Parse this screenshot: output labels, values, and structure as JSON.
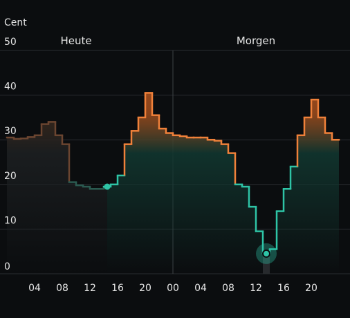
{
  "chart_data": {
    "type": "area",
    "ylabel": "Cent",
    "ylim": [
      0,
      50
    ],
    "yticks": [
      0,
      10,
      20,
      30,
      40,
      50
    ],
    "day_labels": [
      {
        "text": "Heute",
        "hour": 10
      },
      {
        "text": "Morgen",
        "hour": 36
      }
    ],
    "xticks": [
      {
        "hour": 4,
        "label": "04"
      },
      {
        "hour": 8,
        "label": "08"
      },
      {
        "hour": 12,
        "label": "12"
      },
      {
        "hour": 16,
        "label": "16"
      },
      {
        "hour": 20,
        "label": "20"
      },
      {
        "hour": 24,
        "label": "00"
      },
      {
        "hour": 28,
        "label": "04"
      },
      {
        "hour": 32,
        "label": "08"
      },
      {
        "hour": 36,
        "label": "12"
      },
      {
        "hour": 40,
        "label": "16"
      },
      {
        "hour": 44,
        "label": "20"
      }
    ],
    "x_range_hours": [
      0,
      48
    ],
    "day_divider_hour": 24,
    "threshold": 27,
    "current_hour": 14.5,
    "selected_hour": 37.5,
    "series": [
      {
        "values": [
          30.5,
          30.2,
          30.3,
          30.6,
          31.0,
          33.5,
          34.0,
          31.0,
          29.0,
          20.5,
          19.8,
          19.5,
          19.0,
          19.0,
          19.5,
          20.0,
          22.0,
          29.0,
          32.0,
          35.0,
          40.5,
          35.5,
          32.5,
          31.5,
          31.0,
          30.8,
          30.5,
          30.5,
          30.5,
          30.0,
          29.8,
          29.0,
          27.0,
          20.0,
          19.5,
          15.0,
          9.5,
          4.5,
          5.5,
          14.0,
          19.0,
          24.0,
          31.0,
          35.0,
          39.0,
          35.0,
          31.5,
          30.0
        ]
      }
    ],
    "colors": {
      "above": "#f0813a",
      "below": "#2ec4a6",
      "above_fill": "#b5561f",
      "below_fill": "#11362f",
      "past_dim": "#3a3a3a",
      "grid": "#2a2d31",
      "divider": "#3e4246",
      "text": "#e6e6e6",
      "cursor_band": "#2a2d31"
    }
  }
}
